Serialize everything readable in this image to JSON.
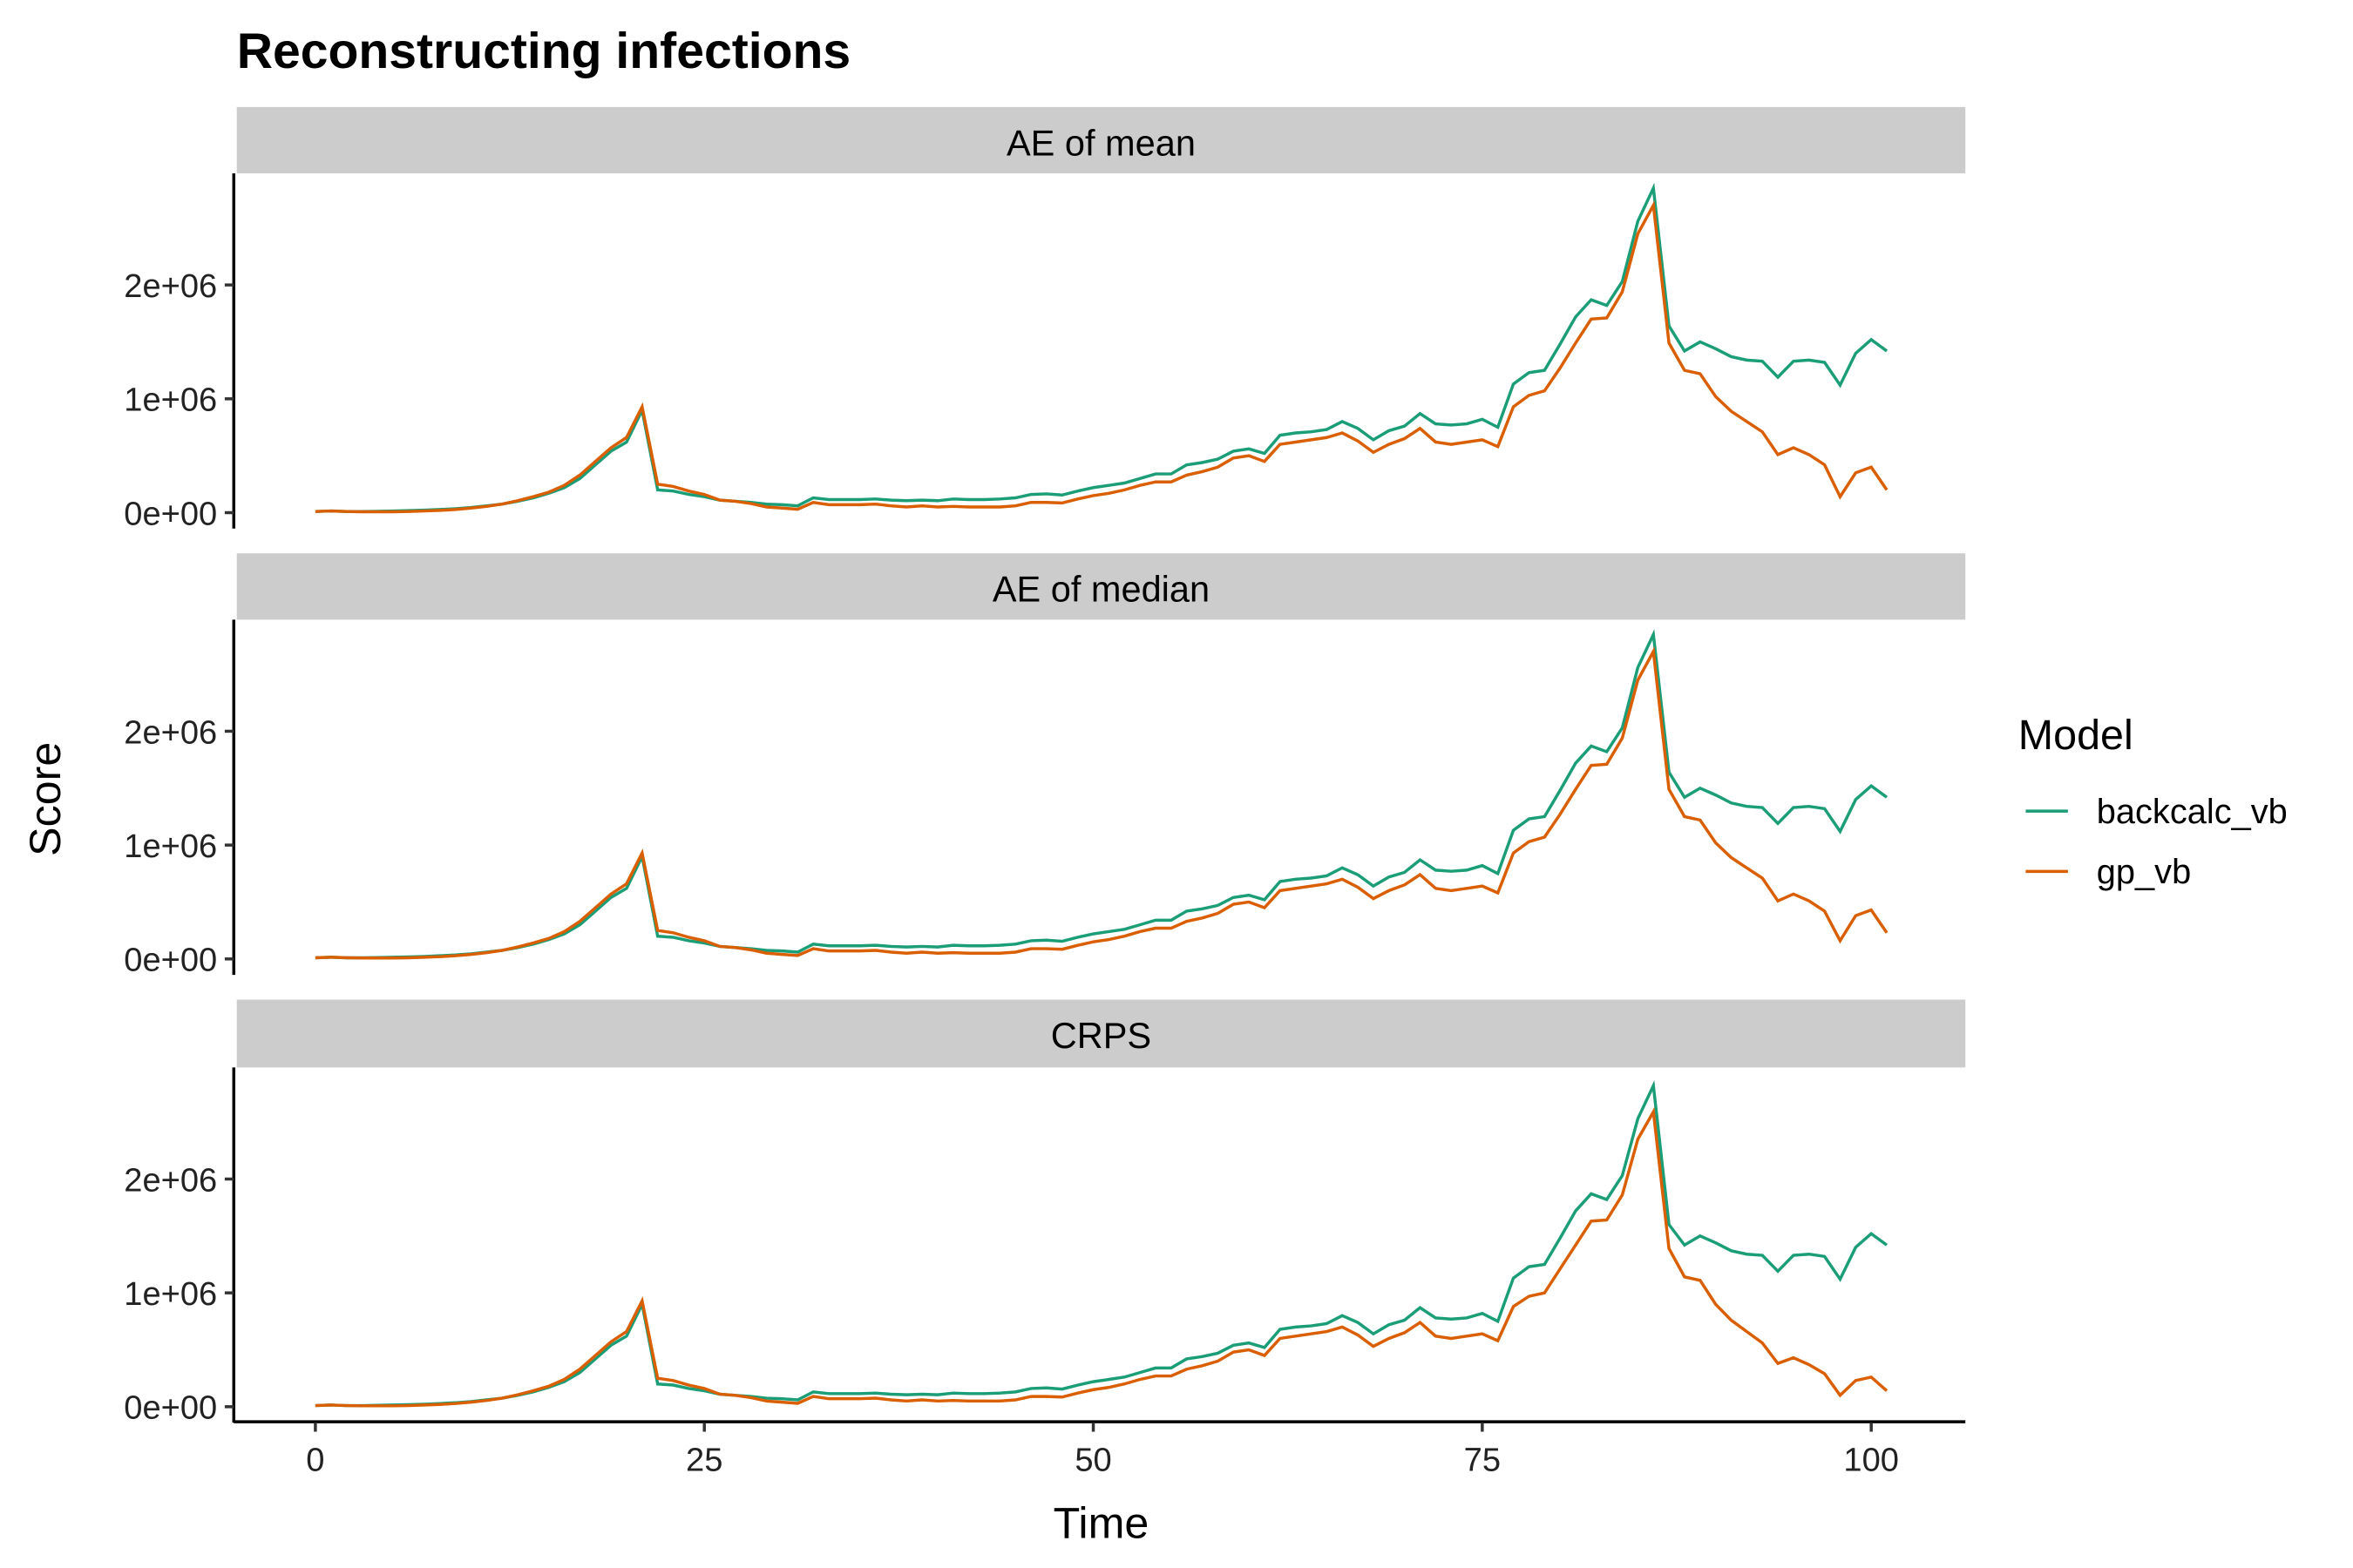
{
  "title": "Reconstructing infections",
  "xlabel": "Time",
  "ylabel": "Score",
  "legend_title": "Model",
  "chart_data": [
    {
      "type": "line",
      "title": "AE of mean",
      "x": [
        0,
        1,
        2,
        3,
        4,
        5,
        6,
        7,
        8,
        9,
        10,
        11,
        12,
        13,
        14,
        15,
        16,
        17,
        18,
        19,
        20,
        21,
        22,
        23,
        24,
        25,
        26,
        27,
        28,
        29,
        30,
        31,
        32,
        33,
        34,
        35,
        36,
        37,
        38,
        39,
        40,
        41,
        42,
        43,
        44,
        45,
        46,
        47,
        48,
        49,
        50,
        51,
        52,
        53,
        54,
        55,
        56,
        57,
        58,
        59,
        60,
        61,
        62,
        63,
        64,
        65,
        66,
        67,
        68,
        69,
        70,
        71,
        72,
        73,
        74,
        75,
        76,
        77,
        78,
        79,
        80,
        81,
        82,
        83,
        84,
        85,
        86,
        87,
        88,
        89,
        90,
        91,
        92,
        93,
        94,
        95,
        96,
        97,
        98,
        99,
        100,
        101
      ],
      "xlim": [
        -5.05,
        106.05
      ],
      "ylim": [
        -140000,
        2980000
      ],
      "yticks": [
        {
          "value": 0,
          "label": "0e+00"
        },
        {
          "value": 1000000,
          "label": "1e+06"
        },
        {
          "value": 2000000,
          "label": "2e+06"
        }
      ],
      "series": [
        {
          "name": "backcalc_vb",
          "color": "#1b9e77",
          "values": [
            10000,
            15000,
            10000,
            10000,
            12000,
            15000,
            18000,
            22000,
            28000,
            35000,
            45000,
            60000,
            75000,
            100000,
            130000,
            170000,
            220000,
            300000,
            420000,
            540000,
            620000,
            900000,
            200000,
            190000,
            160000,
            140000,
            110000,
            100000,
            90000,
            75000,
            70000,
            60000,
            130000,
            115000,
            115000,
            115000,
            120000,
            110000,
            105000,
            110000,
            105000,
            120000,
            115000,
            115000,
            120000,
            130000,
            160000,
            165000,
            155000,
            190000,
            220000,
            240000,
            260000,
            300000,
            340000,
            340000,
            420000,
            440000,
            470000,
            540000,
            560000,
            520000,
            680000,
            700000,
            710000,
            730000,
            800000,
            740000,
            640000,
            720000,
            760000,
            870000,
            780000,
            770000,
            780000,
            820000,
            750000,
            1130000,
            1230000,
            1250000,
            1480000,
            1720000,
            1870000,
            1820000,
            2030000,
            2560000,
            2850000,
            1640000,
            1420000,
            1500000,
            1440000,
            1370000,
            1340000,
            1330000,
            1190000,
            1330000,
            1340000,
            1320000,
            1120000,
            1400000,
            1520000,
            1420000
          ]
        },
        {
          "name": "gp_vb",
          "color": "#d95f02",
          "values": [
            10000,
            15000,
            10000,
            8000,
            8000,
            8000,
            10000,
            15000,
            20000,
            28000,
            40000,
            55000,
            75000,
            105000,
            140000,
            180000,
            240000,
            330000,
            450000,
            570000,
            660000,
            930000,
            250000,
            230000,
            190000,
            160000,
            110000,
            100000,
            80000,
            50000,
            40000,
            30000,
            90000,
            70000,
            70000,
            70000,
            75000,
            60000,
            50000,
            60000,
            50000,
            55000,
            50000,
            50000,
            50000,
            60000,
            90000,
            90000,
            85000,
            120000,
            150000,
            170000,
            200000,
            240000,
            270000,
            270000,
            330000,
            360000,
            400000,
            480000,
            500000,
            450000,
            600000,
            620000,
            640000,
            660000,
            700000,
            630000,
            530000,
            600000,
            650000,
            740000,
            620000,
            600000,
            620000,
            640000,
            580000,
            930000,
            1030000,
            1070000,
            1270000,
            1490000,
            1700000,
            1710000,
            1940000,
            2450000,
            2700000,
            1490000,
            1250000,
            1220000,
            1020000,
            890000,
            800000,
            710000,
            510000,
            570000,
            510000,
            420000,
            140000,
            350000,
            400000,
            200000
          ]
        }
      ]
    },
    {
      "type": "line",
      "title": "AE of median",
      "x": [
        0,
        1,
        2,
        3,
        4,
        5,
        6,
        7,
        8,
        9,
        10,
        11,
        12,
        13,
        14,
        15,
        16,
        17,
        18,
        19,
        20,
        21,
        22,
        23,
        24,
        25,
        26,
        27,
        28,
        29,
        30,
        31,
        32,
        33,
        34,
        35,
        36,
        37,
        38,
        39,
        40,
        41,
        42,
        43,
        44,
        45,
        46,
        47,
        48,
        49,
        50,
        51,
        52,
        53,
        54,
        55,
        56,
        57,
        58,
        59,
        60,
        61,
        62,
        63,
        64,
        65,
        66,
        67,
        68,
        69,
        70,
        71,
        72,
        73,
        74,
        75,
        76,
        77,
        78,
        79,
        80,
        81,
        82,
        83,
        84,
        85,
        86,
        87,
        88,
        89,
        90,
        91,
        92,
        93,
        94,
        95,
        96,
        97,
        98,
        99,
        100,
        101
      ],
      "xlim": [
        -5.05,
        106.05
      ],
      "ylim": [
        -140000,
        2980000
      ],
      "yticks": [
        {
          "value": 0,
          "label": "0e+00"
        },
        {
          "value": 1000000,
          "label": "1e+06"
        },
        {
          "value": 2000000,
          "label": "2e+06"
        }
      ],
      "series": [
        {
          "name": "backcalc_vb",
          "color": "#1b9e77",
          "values": [
            10000,
            15000,
            10000,
            10000,
            12000,
            15000,
            18000,
            22000,
            28000,
            35000,
            45000,
            60000,
            75000,
            100000,
            130000,
            170000,
            220000,
            300000,
            420000,
            540000,
            620000,
            900000,
            200000,
            190000,
            160000,
            140000,
            110000,
            100000,
            90000,
            75000,
            70000,
            60000,
            130000,
            115000,
            115000,
            115000,
            120000,
            110000,
            105000,
            110000,
            105000,
            120000,
            115000,
            115000,
            120000,
            130000,
            160000,
            165000,
            155000,
            190000,
            220000,
            240000,
            260000,
            300000,
            340000,
            340000,
            420000,
            440000,
            470000,
            540000,
            560000,
            520000,
            680000,
            700000,
            710000,
            730000,
            800000,
            740000,
            640000,
            720000,
            760000,
            870000,
            780000,
            770000,
            780000,
            820000,
            750000,
            1130000,
            1230000,
            1250000,
            1480000,
            1720000,
            1870000,
            1820000,
            2030000,
            2560000,
            2850000,
            1640000,
            1420000,
            1500000,
            1440000,
            1370000,
            1340000,
            1330000,
            1190000,
            1330000,
            1340000,
            1320000,
            1120000,
            1400000,
            1520000,
            1420000
          ]
        },
        {
          "name": "gp_vb",
          "color": "#d95f02",
          "values": [
            10000,
            15000,
            10000,
            8000,
            8000,
            8000,
            10000,
            15000,
            20000,
            28000,
            40000,
            55000,
            75000,
            105000,
            140000,
            180000,
            240000,
            330000,
            450000,
            570000,
            660000,
            930000,
            250000,
            230000,
            190000,
            160000,
            110000,
            100000,
            80000,
            50000,
            40000,
            30000,
            90000,
            70000,
            70000,
            70000,
            75000,
            60000,
            50000,
            60000,
            50000,
            55000,
            50000,
            50000,
            50000,
            60000,
            90000,
            90000,
            85000,
            120000,
            150000,
            170000,
            200000,
            240000,
            270000,
            270000,
            330000,
            360000,
            400000,
            480000,
            500000,
            450000,
            600000,
            620000,
            640000,
            660000,
            700000,
            630000,
            530000,
            600000,
            650000,
            740000,
            620000,
            600000,
            620000,
            640000,
            580000,
            930000,
            1030000,
            1070000,
            1270000,
            1490000,
            1700000,
            1710000,
            1940000,
            2450000,
            2700000,
            1490000,
            1250000,
            1220000,
            1020000,
            890000,
            800000,
            710000,
            510000,
            570000,
            510000,
            420000,
            160000,
            380000,
            430000,
            230000
          ]
        }
      ]
    },
    {
      "type": "line",
      "title": "CRPS",
      "x": [
        0,
        1,
        2,
        3,
        4,
        5,
        6,
        7,
        8,
        9,
        10,
        11,
        12,
        13,
        14,
        15,
        16,
        17,
        18,
        19,
        20,
        21,
        22,
        23,
        24,
        25,
        26,
        27,
        28,
        29,
        30,
        31,
        32,
        33,
        34,
        35,
        36,
        37,
        38,
        39,
        40,
        41,
        42,
        43,
        44,
        45,
        46,
        47,
        48,
        49,
        50,
        51,
        52,
        53,
        54,
        55,
        56,
        57,
        58,
        59,
        60,
        61,
        62,
        63,
        64,
        65,
        66,
        67,
        68,
        69,
        70,
        71,
        72,
        73,
        74,
        75,
        76,
        77,
        78,
        79,
        80,
        81,
        82,
        83,
        84,
        85,
        86,
        87,
        88,
        89,
        90,
        91,
        92,
        93,
        94,
        95,
        96,
        97,
        98,
        99,
        100,
        101
      ],
      "xlim": [
        -5.05,
        106.05
      ],
      "ylim": [
        -140000,
        2980000
      ],
      "xticks": [
        0,
        25,
        50,
        75,
        100
      ],
      "yticks": [
        {
          "value": 0,
          "label": "0e+00"
        },
        {
          "value": 1000000,
          "label": "1e+06"
        },
        {
          "value": 2000000,
          "label": "2e+06"
        }
      ],
      "series": [
        {
          "name": "backcalc_vb",
          "color": "#1b9e77",
          "values": [
            10000,
            15000,
            10000,
            10000,
            12000,
            15000,
            18000,
            22000,
            28000,
            35000,
            45000,
            60000,
            75000,
            100000,
            130000,
            170000,
            220000,
            300000,
            420000,
            540000,
            620000,
            900000,
            200000,
            190000,
            160000,
            140000,
            110000,
            100000,
            90000,
            75000,
            70000,
            60000,
            130000,
            115000,
            115000,
            115000,
            120000,
            110000,
            105000,
            110000,
            105000,
            120000,
            115000,
            115000,
            120000,
            130000,
            160000,
            165000,
            155000,
            190000,
            220000,
            240000,
            260000,
            300000,
            340000,
            340000,
            420000,
            440000,
            470000,
            540000,
            560000,
            520000,
            680000,
            700000,
            710000,
            730000,
            800000,
            740000,
            640000,
            720000,
            760000,
            870000,
            780000,
            770000,
            780000,
            820000,
            750000,
            1130000,
            1230000,
            1250000,
            1480000,
            1720000,
            1870000,
            1820000,
            2030000,
            2530000,
            2820000,
            1600000,
            1420000,
            1500000,
            1440000,
            1370000,
            1340000,
            1330000,
            1190000,
            1330000,
            1340000,
            1320000,
            1120000,
            1400000,
            1520000,
            1420000
          ]
        },
        {
          "name": "gp_vb",
          "color": "#d95f02",
          "values": [
            10000,
            15000,
            10000,
            8000,
            8000,
            8000,
            10000,
            15000,
            20000,
            28000,
            40000,
            55000,
            75000,
            105000,
            140000,
            180000,
            240000,
            330000,
            450000,
            570000,
            660000,
            930000,
            250000,
            230000,
            190000,
            160000,
            110000,
            100000,
            80000,
            50000,
            40000,
            30000,
            90000,
            70000,
            70000,
            70000,
            75000,
            60000,
            50000,
            60000,
            50000,
            55000,
            50000,
            50000,
            50000,
            60000,
            90000,
            90000,
            85000,
            120000,
            150000,
            170000,
            200000,
            240000,
            270000,
            270000,
            330000,
            360000,
            400000,
            480000,
            500000,
            450000,
            600000,
            620000,
            640000,
            660000,
            700000,
            630000,
            530000,
            600000,
            650000,
            740000,
            620000,
            600000,
            620000,
            640000,
            580000,
            880000,
            970000,
            1000000,
            1210000,
            1420000,
            1630000,
            1640000,
            1860000,
            2350000,
            2590000,
            1390000,
            1140000,
            1110000,
            900000,
            760000,
            660000,
            560000,
            380000,
            430000,
            370000,
            290000,
            100000,
            230000,
            260000,
            140000
          ]
        }
      ]
    }
  ]
}
